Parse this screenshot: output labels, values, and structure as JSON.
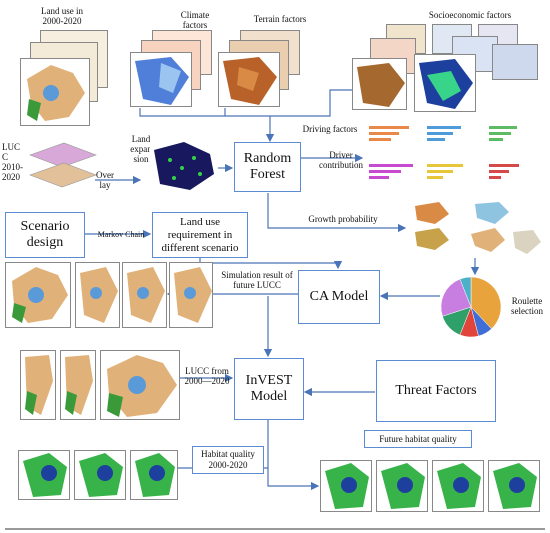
{
  "labels": {
    "land_use_history": "Land use  in\n2000-2020",
    "climate_factors": "Climate\nfactors",
    "terrain_factors": "Terrain factors",
    "socioeconomic_factors": "Socioeconomic factors",
    "lucc_years": "LUC\nC\n2010-\n2020",
    "overlay": "Over\nlay",
    "land_expansion": "Land\nexpan\nsion",
    "driving_factors": "Driving factors",
    "driver_contribution": "Driver\ncontribution",
    "growth_probability": "Growth probability",
    "markov_chain": "Markov Chain",
    "simulation_result": "Simulation result of\nfuture LUCC",
    "roulette_selection": "Roulette\nselection",
    "lucc_period": "LUCC from\n2000—2020",
    "habitat_quality_history": "Habitat quality\n2000-2020"
  },
  "boxes": {
    "random_forest": "Random\nForest",
    "scenario_design": "Scenario\ndesign",
    "land_use_requirement": "Land use\nrequirement in\ndifferent scenario",
    "ca_model": "CA Model",
    "invest_model": "InVEST\nModel",
    "threat_factors": "Threat Factors",
    "future_habitat_quality": "Future habitat quality"
  },
  "colors": {
    "box_border": "#5b8bd0",
    "arrow": "#4a74b8",
    "pie_orange": "#e8a33c",
    "pie_blue": "#3f6fd6",
    "pie_red": "#e0443a",
    "pie_green": "#2fa06a",
    "pie_purple": "#c77ee0",
    "pie_teal": "#4bb0c8"
  },
  "chart_data": {
    "type": "pie",
    "title": "",
    "values": [
      38,
      8,
      10,
      14,
      24,
      6
    ],
    "colors": [
      "#e8a33c",
      "#3f6fd6",
      "#e0443a",
      "#2fa06a",
      "#c77ee0",
      "#4bb0c8"
    ]
  }
}
